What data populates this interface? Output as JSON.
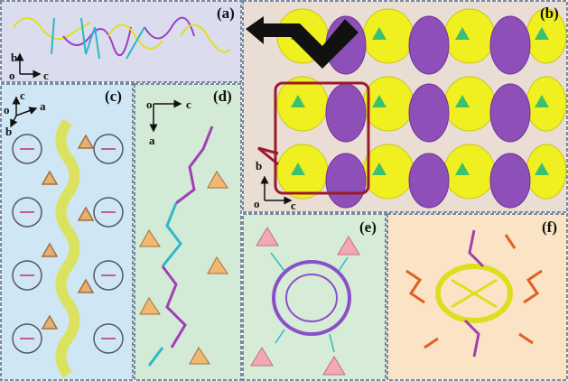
{
  "panels": [
    {
      "label": "(a)",
      "axes": [
        "b",
        "o",
        "c"
      ]
    },
    {
      "label": "(b)",
      "axes": [
        "b",
        "o",
        "c"
      ]
    },
    {
      "label": "(c)",
      "axes": [
        "c",
        "a",
        "b",
        "o"
      ]
    },
    {
      "label": "(d)",
      "axes": [
        "o",
        "c",
        "a"
      ]
    },
    {
      "label": "(e)",
      "axes": []
    },
    {
      "label": "(f)",
      "axes": []
    }
  ]
}
